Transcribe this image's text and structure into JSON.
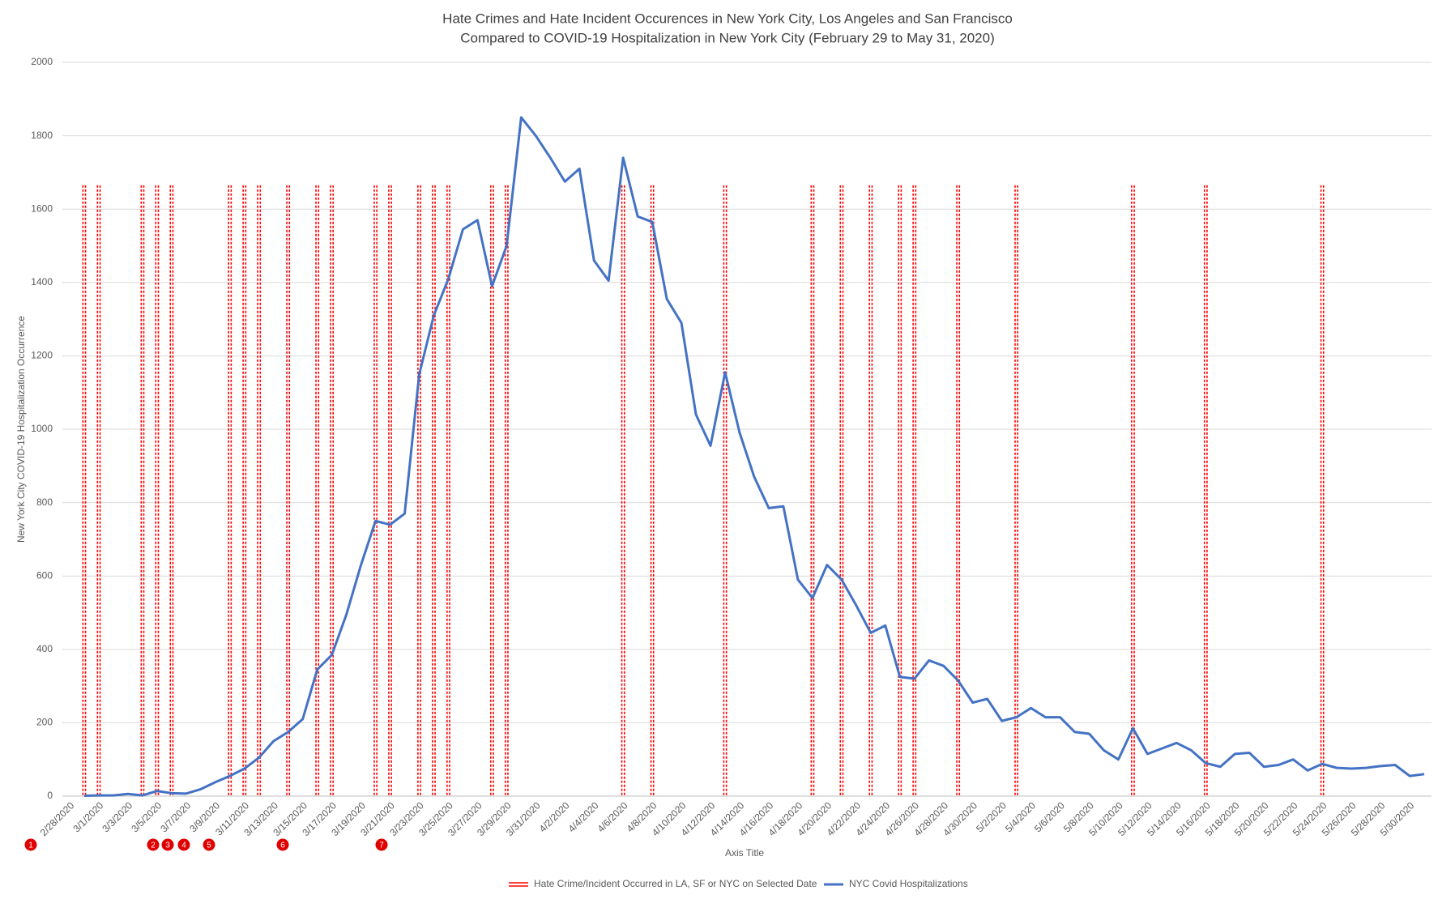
{
  "chart_data": {
    "type": "line",
    "title": "Hate Crimes and Hate Incident Occurences in New York City, Los Angeles and San Francisco",
    "subtitle": "Compared to COVID-19 Hospitalization in New York City (February 29 to May 31, 2020)",
    "x_label": "Axis Title",
    "y_label": "New York City COVID-19 Hospitalization Occurrence",
    "categories": [
      "2/28/2020",
      null,
      "3/1/2020",
      null,
      "3/3/2020",
      null,
      "3/5/2020",
      null,
      "3/7/2020",
      null,
      "3/9/2020",
      null,
      "3/11/2020",
      null,
      "3/13/2020",
      null,
      "3/15/2020",
      null,
      "3/17/2020",
      null,
      "3/19/2020",
      null,
      "3/21/2020",
      null,
      "3/23/2020",
      null,
      "3/25/2020",
      null,
      "3/27/2020",
      null,
      "3/29/2020",
      null,
      "3/31/2020",
      null,
      "4/2/2020",
      null,
      "4/4/2020",
      null,
      "4/6/2020",
      null,
      "4/8/2020",
      null,
      "4/10/2020",
      null,
      "4/12/2020",
      null,
      "4/14/2020",
      null,
      "4/16/2020",
      null,
      "4/18/2020",
      null,
      "4/20/2020",
      null,
      "4/22/2020",
      null,
      "4/24/2020",
      null,
      "4/26/2020",
      null,
      "4/28/2020",
      null,
      "4/30/2020",
      null,
      "5/2/2020",
      null,
      "5/4/2020",
      null,
      "5/6/2020",
      null,
      "5/8/2020",
      null,
      "5/10/2020",
      null,
      "5/12/2020",
      null,
      "5/14/2020",
      null,
      "5/16/2020",
      null,
      "5/18/2020",
      null,
      "5/20/2020",
      null,
      "5/22/2020",
      null,
      "5/24/2020",
      null,
      "5/26/2020",
      null,
      "5/28/2020",
      null,
      "5/30/2020",
      null
    ],
    "series": [
      {
        "name": "Hate Crime/Incident Occurred in LA, SF or NYC on Selected Date",
        "type": "bar",
        "color": "#ff0000",
        "values": [
          null,
          1665,
          1665,
          null,
          null,
          1665,
          1665,
          1665,
          null,
          null,
          null,
          1665,
          1665,
          1665,
          null,
          1665,
          null,
          1665,
          1665,
          null,
          null,
          1665,
          1665,
          null,
          1665,
          1665,
          1665,
          null,
          null,
          1665,
          1665,
          null,
          null,
          null,
          null,
          null,
          null,
          null,
          1665,
          null,
          1665,
          null,
          null,
          null,
          null,
          1665,
          null,
          null,
          null,
          null,
          null,
          1665,
          null,
          1665,
          null,
          1665,
          null,
          1665,
          1665,
          null,
          null,
          1665,
          null,
          null,
          null,
          1665,
          null,
          null,
          null,
          null,
          null,
          null,
          null,
          1665,
          null,
          null,
          null,
          null,
          1665,
          null,
          null,
          null,
          null,
          null,
          null,
          null,
          1665,
          null,
          null,
          null,
          null,
          null,
          null,
          null
        ]
      },
      {
        "name": "NYC Covid Hospitalizations",
        "type": "line",
        "color": "#4472c4",
        "values": [
          null,
          1,
          2,
          2,
          6,
          2,
          14,
          8,
          7,
          19,
          38,
          55,
          75,
          105,
          150,
          175,
          210,
          345,
          385,
          495,
          630,
          750,
          740,
          770,
          1150,
          1310,
          1410,
          1545,
          1570,
          1390,
          1500,
          1850,
          1800,
          1740,
          1675,
          1710,
          1460,
          1405,
          1740,
          1580,
          1565,
          1355,
          1290,
          1040,
          955,
          1155,
          990,
          870,
          785,
          790,
          590,
          540,
          630,
          590,
          520,
          445,
          465,
          325,
          320,
          370,
          355,
          315,
          255,
          265,
          205,
          215,
          240,
          215,
          215,
          175,
          170,
          125,
          100,
          185,
          115,
          130,
          145,
          125,
          90,
          80,
          115,
          118,
          80,
          85,
          100,
          70,
          88,
          77,
          75,
          77,
          82,
          85,
          55,
          60
        ]
      }
    ],
    "annotations": [
      "1",
      "2",
      "3",
      "4",
      "5",
      "6",
      "7"
    ],
    "ylim": [
      0,
      2000
    ],
    "yticks": [
      0,
      200,
      400,
      600,
      800,
      1000,
      1200,
      1400,
      1600,
      1800,
      2000
    ],
    "grid": true,
    "legend": "bottom"
  }
}
